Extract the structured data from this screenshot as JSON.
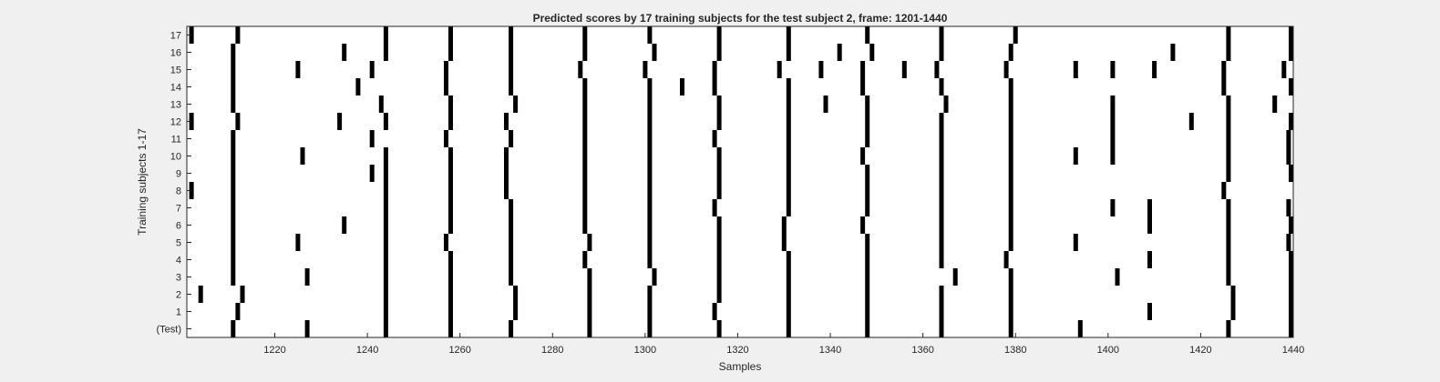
{
  "chart_data": {
    "type": "raster",
    "title": "Predicted scores by 17 training subjects for the test subject 2, frame: 1201-1440",
    "xlabel": "Samples",
    "ylabel": "Training subjects 1-17",
    "xlim": [
      1201,
      1440
    ],
    "x_ticks": [
      1220,
      1240,
      1260,
      1280,
      1300,
      1320,
      1340,
      1360,
      1380,
      1400,
      1420,
      1440
    ],
    "y_tick_labels": [
      "(Test)",
      "1",
      "2",
      "3",
      "4",
      "5",
      "6",
      "7",
      "8",
      "9",
      "10",
      "11",
      "12",
      "13",
      "14",
      "15",
      "16",
      "17"
    ],
    "grid": false,
    "mark_color": "#000000",
    "rows": [
      {
        "label": "(Test)",
        "x": [
          1211,
          1227,
          1244,
          1258,
          1271,
          1288,
          1301,
          1316,
          1331,
          1348,
          1364,
          1379,
          1394,
          1426,
          1440
        ]
      },
      {
        "label": "1",
        "x": [
          1212,
          1244,
          1258,
          1272,
          1288,
          1301,
          1315,
          1331,
          1348,
          1364,
          1379,
          1409,
          1427,
          1440
        ]
      },
      {
        "label": "2",
        "x": [
          1204,
          1213,
          1244,
          1258,
          1272,
          1288,
          1301,
          1316,
          1331,
          1348,
          1364,
          1379,
          1427,
          1440
        ]
      },
      {
        "label": "3",
        "x": [
          1211,
          1227,
          1244,
          1258,
          1271,
          1288,
          1302,
          1316,
          1331,
          1348,
          1367,
          1379,
          1402,
          1426,
          1440
        ]
      },
      {
        "label": "4",
        "x": [
          1211,
          1244,
          1258,
          1271,
          1287,
          1301,
          1316,
          1331,
          1348,
          1364,
          1378,
          1409,
          1426,
          1440
        ]
      },
      {
        "label": "5",
        "x": [
          1211,
          1225,
          1244,
          1257,
          1271,
          1288,
          1301,
          1316,
          1330,
          1348,
          1364,
          1379,
          1393,
          1426,
          1439
        ]
      },
      {
        "label": "6",
        "x": [
          1211,
          1235,
          1244,
          1258,
          1271,
          1287,
          1301,
          1316,
          1330,
          1347,
          1364,
          1379,
          1409,
          1426,
          1440
        ]
      },
      {
        "label": "7",
        "x": [
          1211,
          1244,
          1258,
          1271,
          1287,
          1301,
          1315,
          1331,
          1348,
          1364,
          1379,
          1401,
          1409,
          1426,
          1439
        ]
      },
      {
        "label": "8",
        "x": [
          1202,
          1211,
          1244,
          1258,
          1270,
          1287,
          1301,
          1316,
          1331,
          1348,
          1364,
          1379,
          1425
        ]
      },
      {
        "label": "9",
        "x": [
          1211,
          1241,
          1244,
          1258,
          1270,
          1287,
          1301,
          1316,
          1331,
          1348,
          1364,
          1379,
          1426,
          1440
        ]
      },
      {
        "label": "10",
        "x": [
          1211,
          1226,
          1244,
          1258,
          1270,
          1287,
          1301,
          1316,
          1331,
          1347,
          1364,
          1379,
          1393,
          1401,
          1426,
          1439
        ]
      },
      {
        "label": "11",
        "x": [
          1211,
          1241,
          1257,
          1271,
          1287,
          1301,
          1315,
          1331,
          1348,
          1364,
          1379,
          1401,
          1426,
          1439
        ]
      },
      {
        "label": "12",
        "x": [
          1202,
          1212,
          1234,
          1244,
          1258,
          1270,
          1287,
          1301,
          1316,
          1331,
          1348,
          1364,
          1379,
          1401,
          1418,
          1426,
          1440
        ]
      },
      {
        "label": "13",
        "x": [
          1211,
          1243,
          1258,
          1272,
          1287,
          1301,
          1316,
          1331,
          1339,
          1348,
          1365,
          1379,
          1401,
          1426,
          1436
        ]
      },
      {
        "label": "14",
        "x": [
          1211,
          1238,
          1257,
          1271,
          1287,
          1301,
          1308,
          1315,
          1331,
          1347,
          1364,
          1379,
          1425,
          1440
        ]
      },
      {
        "label": "15",
        "x": [
          1211,
          1225,
          1241,
          1257,
          1271,
          1286,
          1300,
          1315,
          1329,
          1338,
          1347,
          1356,
          1363,
          1378,
          1393,
          1401,
          1410,
          1425,
          1438
        ]
      },
      {
        "label": "16",
        "x": [
          1211,
          1235,
          1244,
          1258,
          1271,
          1287,
          1302,
          1316,
          1331,
          1342,
          1349,
          1364,
          1379,
          1414,
          1426,
          1440
        ]
      },
      {
        "label": "17",
        "x": [
          1202,
          1212,
          1244,
          1258,
          1271,
          1287,
          1301,
          1316,
          1331,
          1348,
          1364,
          1380,
          1426,
          1440
        ]
      }
    ]
  }
}
